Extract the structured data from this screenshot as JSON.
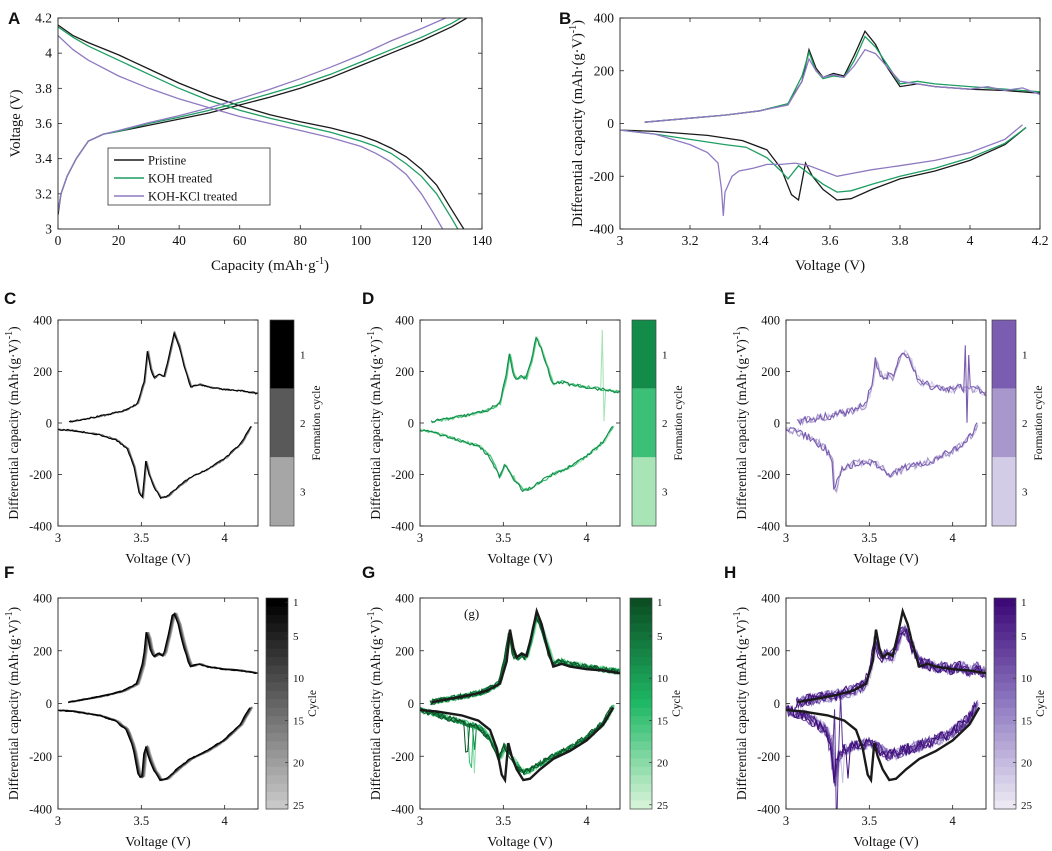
{
  "colors": {
    "pristine": "#1a1a1a",
    "koh": "#1e9e63",
    "kohkcl": "#8f7ac2",
    "green_dark": "#0b6b2d",
    "green_light": "#c6ecc8",
    "purple_dark": "#4b1a86",
    "purple_light": "#e4e0ef",
    "gray_dark": "#000000",
    "gray_light": "#c8c8c8"
  },
  "chart_data": [
    {
      "id": "A",
      "panel_label": "A",
      "type": "line",
      "xlabel": "Capacity (mAh·g",
      "xlabel_sup": "-1",
      "xlabel_close": ")",
      "ylabel": "Voltage (V)",
      "xlim": [
        0,
        140
      ],
      "ylim": [
        3,
        4.2
      ],
      "xticks": [
        0,
        20,
        40,
        60,
        80,
        100,
        120,
        140
      ],
      "yticks": [
        3,
        3.2,
        3.4,
        3.6,
        3.8,
        4,
        4.2
      ],
      "legend": [
        "Pristine",
        "KOH treated",
        "KOH-KCl treated"
      ],
      "legend_position": "bottom-left",
      "series": [
        {
          "name": "Pristine charge",
          "color": "pristine",
          "x": [
            0,
            1,
            3,
            6,
            10,
            15,
            20,
            30,
            40,
            50,
            60,
            70,
            80,
            90,
            100,
            110,
            120,
            130,
            135
          ],
          "y": [
            3.08,
            3.2,
            3.3,
            3.4,
            3.5,
            3.54,
            3.555,
            3.59,
            3.625,
            3.66,
            3.705,
            3.75,
            3.8,
            3.86,
            3.93,
            4.0,
            4.07,
            4.15,
            4.2
          ]
        },
        {
          "name": "Pristine discharge",
          "color": "pristine",
          "x": [
            0,
            5,
            10,
            20,
            30,
            40,
            50,
            60,
            70,
            80,
            90,
            100,
            105,
            110,
            115,
            120,
            125,
            130,
            134
          ],
          "y": [
            4.16,
            4.1,
            4.06,
            3.99,
            3.91,
            3.83,
            3.76,
            3.7,
            3.65,
            3.61,
            3.575,
            3.53,
            3.5,
            3.46,
            3.41,
            3.34,
            3.25,
            3.11,
            3.0
          ]
        },
        {
          "name": "KOH charge",
          "color": "koh",
          "x": [
            0,
            1,
            3,
            6,
            10,
            15,
            20,
            30,
            40,
            50,
            60,
            70,
            80,
            90,
            100,
            110,
            120,
            130,
            133
          ],
          "y": [
            3.1,
            3.2,
            3.3,
            3.4,
            3.5,
            3.54,
            3.555,
            3.6,
            3.635,
            3.675,
            3.72,
            3.77,
            3.82,
            3.88,
            3.95,
            4.02,
            4.09,
            4.17,
            4.2
          ]
        },
        {
          "name": "KOH discharge",
          "color": "koh",
          "x": [
            0,
            5,
            10,
            20,
            30,
            40,
            50,
            60,
            70,
            80,
            90,
            100,
            105,
            110,
            115,
            120,
            125,
            130,
            132
          ],
          "y": [
            4.15,
            4.09,
            4.04,
            3.96,
            3.88,
            3.8,
            3.73,
            3.675,
            3.63,
            3.59,
            3.55,
            3.5,
            3.47,
            3.43,
            3.37,
            3.3,
            3.2,
            3.06,
            3.0
          ]
        },
        {
          "name": "KOH-KCl charge",
          "color": "kohkcl",
          "x": [
            0,
            1,
            3,
            6,
            10,
            15,
            20,
            30,
            40,
            50,
            60,
            70,
            80,
            90,
            100,
            110,
            120,
            128
          ],
          "y": [
            3.1,
            3.2,
            3.3,
            3.4,
            3.5,
            3.54,
            3.56,
            3.605,
            3.645,
            3.69,
            3.74,
            3.795,
            3.855,
            3.92,
            3.99,
            4.07,
            4.14,
            4.2
          ]
        },
        {
          "name": "KOH-KCl discharge",
          "color": "kohkcl",
          "x": [
            0,
            5,
            10,
            20,
            30,
            40,
            50,
            60,
            70,
            80,
            90,
            100,
            105,
            110,
            115,
            120,
            124,
            127
          ],
          "y": [
            4.1,
            4.02,
            3.96,
            3.87,
            3.8,
            3.74,
            3.69,
            3.64,
            3.6,
            3.56,
            3.52,
            3.47,
            3.43,
            3.38,
            3.31,
            3.2,
            3.09,
            3.0
          ]
        }
      ]
    },
    {
      "id": "B",
      "panel_label": "B",
      "type": "line",
      "xlabel": "Voltage (V)",
      "ylabel": "Differential capacity (mAh·(g·V)",
      "ylabel_sup": "-1",
      "ylabel_close": ")",
      "xlim": [
        3,
        4.2
      ],
      "ylim": [
        -400,
        400
      ],
      "xticks": [
        3,
        3.2,
        3.4,
        3.6,
        3.8,
        4,
        4.2
      ],
      "yticks": [
        -400,
        -200,
        0,
        200,
        400
      ],
      "series": [
        {
          "name": "Pristine charge",
          "color": "pristine",
          "x": [
            3.07,
            3.2,
            3.3,
            3.4,
            3.48,
            3.52,
            3.54,
            3.56,
            3.58,
            3.61,
            3.64,
            3.67,
            3.7,
            3.73,
            3.76,
            3.8,
            3.85,
            3.9,
            4.0,
            4.1,
            4.2
          ],
          "y": [
            5,
            20,
            32,
            48,
            75,
            160,
            280,
            210,
            175,
            190,
            180,
            260,
            350,
            300,
            220,
            140,
            150,
            140,
            130,
            125,
            115
          ]
        },
        {
          "name": "Pristine discharge",
          "color": "pristine",
          "x": [
            4.16,
            4.1,
            4.0,
            3.9,
            3.8,
            3.72,
            3.66,
            3.62,
            3.58,
            3.55,
            3.53,
            3.51,
            3.49,
            3.46,
            3.42,
            3.35,
            3.25,
            3.1,
            3.0
          ],
          "y": [
            -15,
            -80,
            -140,
            -180,
            -210,
            -250,
            -285,
            -290,
            -250,
            -200,
            -150,
            -290,
            -270,
            -170,
            -100,
            -65,
            -45,
            -30,
            -25
          ]
        },
        {
          "name": "KOH charge",
          "color": "koh",
          "x": [
            3.07,
            3.2,
            3.3,
            3.4,
            3.48,
            3.52,
            3.54,
            3.56,
            3.58,
            3.61,
            3.64,
            3.67,
            3.7,
            3.73,
            3.76,
            3.8,
            3.85,
            3.9,
            4.0,
            4.1,
            4.2
          ],
          "y": [
            5,
            20,
            32,
            48,
            75,
            180,
            270,
            200,
            170,
            180,
            175,
            240,
            330,
            290,
            230,
            150,
            160,
            150,
            140,
            130,
            120
          ]
        },
        {
          "name": "KOH discharge",
          "color": "koh",
          "x": [
            4.16,
            4.1,
            4.0,
            3.9,
            3.8,
            3.72,
            3.66,
            3.62,
            3.58,
            3.54,
            3.51,
            3.48,
            3.46,
            3.42,
            3.36,
            3.3,
            3.25,
            3.1,
            3.0
          ],
          "y": [
            -15,
            -75,
            -130,
            -170,
            -200,
            -230,
            -255,
            -260,
            -230,
            -190,
            -160,
            -210,
            -180,
            -130,
            -90,
            -80,
            -70,
            -40,
            -25
          ]
        },
        {
          "name": "KOH-KCl charge",
          "color": "kohkcl",
          "x": [
            3.07,
            3.2,
            3.3,
            3.4,
            3.48,
            3.52,
            3.54,
            3.56,
            3.58,
            3.61,
            3.64,
            3.67,
            3.7,
            3.73,
            3.76,
            3.8,
            3.85,
            3.9,
            4.0,
            4.05,
            4.1,
            4.15,
            4.2
          ],
          "y": [
            5,
            20,
            32,
            48,
            70,
            160,
            245,
            200,
            175,
            185,
            175,
            220,
            280,
            265,
            220,
            160,
            150,
            140,
            130,
            140,
            125,
            135,
            110
          ]
        },
        {
          "name": "KOH-KCl discharge",
          "color": "kohkcl",
          "x": [
            4.15,
            4.1,
            4.0,
            3.9,
            3.8,
            3.72,
            3.66,
            3.62,
            3.58,
            3.54,
            3.5,
            3.46,
            3.42,
            3.38,
            3.34,
            3.32,
            3.3,
            3.295,
            3.29,
            3.28,
            3.25,
            3.2,
            3.1,
            3.0
          ],
          "y": [
            -5,
            -60,
            -110,
            -140,
            -160,
            -175,
            -190,
            -200,
            -180,
            -160,
            -150,
            -155,
            -155,
            -170,
            -180,
            -200,
            -260,
            -350,
            -250,
            -150,
            -110,
            -80,
            -40,
            -25
          ]
        }
      ]
    },
    {
      "id": "C",
      "panel_label": "C",
      "type": "line",
      "xlabel": "Voltage (V)",
      "ylabel": "Differential capacity (mAh·(g·V)",
      "ylabel_sup": "-1",
      "ylabel_close": ")",
      "xlim": [
        3,
        4.2
      ],
      "ylim": [
        -400,
        400
      ],
      "xticks": [
        3,
        3.5,
        4
      ],
      "yticks": [
        -400,
        -200,
        0,
        200,
        400
      ],
      "colorbar": {
        "label": "Formation cycle",
        "type": "discrete",
        "ticks": [
          "1",
          "2",
          "3"
        ],
        "colors": [
          "#000000",
          "#595959",
          "#a6a6a6"
        ]
      },
      "base": "pristine",
      "variant": "formation"
    },
    {
      "id": "D",
      "panel_label": "D",
      "type": "line",
      "xlabel": "Voltage (V)",
      "ylabel": "Differential capacity (mAh·(g·V)",
      "ylabel_sup": "-1",
      "ylabel_close": ")",
      "xlim": [
        3,
        4.2
      ],
      "ylim": [
        -400,
        400
      ],
      "xticks": [
        3,
        3.5,
        4
      ],
      "yticks": [
        -400,
        -200,
        0,
        200,
        400
      ],
      "colorbar": {
        "label": "Formation cycle",
        "type": "discrete",
        "ticks": [
          "1",
          "2",
          "3"
        ],
        "colors": [
          "#138c4a",
          "#3cc078",
          "#a9e4b6"
        ]
      },
      "base": "koh",
      "variant": "formation"
    },
    {
      "id": "E",
      "panel_label": "E",
      "type": "line",
      "xlabel": "Voltage (V)",
      "ylabel": "Differential capacity (mAh·(g·V)",
      "ylabel_sup": "-1",
      "ylabel_close": ")",
      "xlim": [
        3,
        4.2
      ],
      "ylim": [
        -400,
        400
      ],
      "xticks": [
        3,
        3.5,
        4
      ],
      "yticks": [
        -400,
        -200,
        0,
        200,
        400
      ],
      "colorbar": {
        "label": "Formation cycle",
        "type": "discrete",
        "ticks": [
          "1",
          "2",
          "3"
        ],
        "colors": [
          "#7a5cb0",
          "#a797cc",
          "#d3cce6"
        ]
      },
      "base": "kohkcl",
      "variant": "formation"
    },
    {
      "id": "F",
      "panel_label": "F",
      "type": "line",
      "xlabel": "Voltage (V)",
      "ylabel": "Differential capacity (mAh·(g·V)",
      "ylabel_sup": "-1",
      "ylabel_close": ")",
      "xlim": [
        3,
        4.2
      ],
      "ylim": [
        -400,
        400
      ],
      "xticks": [
        3,
        3.5,
        4
      ],
      "yticks": [
        -400,
        -200,
        0,
        200,
        400
      ],
      "colorbar": {
        "label": "Cycle",
        "type": "continuous",
        "ticks": [
          "1",
          "5",
          "10",
          "15",
          "20",
          "25"
        ],
        "colors": [
          "#000000",
          "#c8c8c8"
        ]
      },
      "base": "pristine",
      "variant": "cycling"
    },
    {
      "id": "G",
      "panel_label": "G",
      "type": "line",
      "xlabel": "Voltage (V)",
      "ylabel": "Differential capacity (mAh·(g·V)",
      "ylabel_sup": "-1",
      "ylabel_close": ")",
      "xlim": [
        3,
        4.2
      ],
      "ylim": [
        -400,
        400
      ],
      "xticks": [
        3,
        3.5,
        4
      ],
      "yticks": [
        -400,
        -200,
        0,
        200,
        400
      ],
      "annotation": "(g)",
      "colorbar": {
        "label": "Cycle",
        "type": "continuous",
        "ticks": [
          "1",
          "5",
          "10",
          "15",
          "20",
          "25"
        ],
        "colors": [
          "#0b4f23",
          "#1fb865",
          "#d4f2d6"
        ]
      },
      "base": "koh",
      "variant": "cycling",
      "reference": "pristine"
    },
    {
      "id": "H",
      "panel_label": "H",
      "type": "line",
      "xlabel": "Voltage (V)",
      "ylabel": "Differential capacity (mAh·(g·V)",
      "ylabel_sup": "-1",
      "ylabel_close": ")",
      "xlim": [
        3,
        4.2
      ],
      "ylim": [
        -400,
        400
      ],
      "xticks": [
        3,
        3.5,
        4
      ],
      "yticks": [
        -400,
        -200,
        0,
        200,
        400
      ],
      "colorbar": {
        "label": "Cycle",
        "type": "continuous",
        "ticks": [
          "1",
          "5",
          "10",
          "15",
          "20",
          "25"
        ],
        "colors": [
          "#3d0a78",
          "#8f7ac2",
          "#ebe8f3"
        ]
      },
      "base": "kohkcl",
      "variant": "cycling",
      "reference": "pristine"
    }
  ]
}
